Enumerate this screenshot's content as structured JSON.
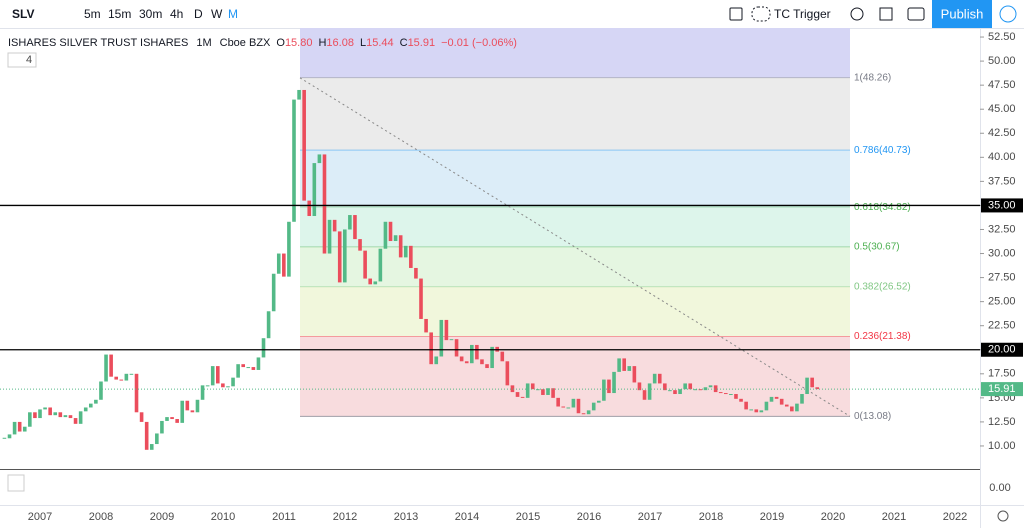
{
  "toolbar": {
    "symbol": "SLV",
    "intervals": [
      "5m",
      "15m",
      "30m",
      "4h",
      "D",
      "W",
      "M"
    ],
    "indicator": "TC Trigger",
    "publish": "Publish"
  },
  "legend": {
    "name": "ISHARES SILVER TRUST ISHARES",
    "interval": "1M",
    "exchange": "Cboe BZX",
    "ohlc": [
      [
        "O",
        "15.80"
      ],
      [
        "H",
        "16.08"
      ],
      [
        "L",
        "15.44"
      ],
      [
        "C",
        "15.91"
      ]
    ],
    "change": "−0.01 (−0.06%)",
    "indicators": "4"
  },
  "lower_pane": {
    "ytick": "0.00"
  },
  "chart_data": {
    "type": "candlestick",
    "up_color": "#53b987",
    "down_color": "#eb4d5c",
    "close": [
      10.8,
      11.2,
      12.5,
      11.5,
      12.0,
      13.5,
      12.9,
      13.8,
      14.0,
      13.2,
      13.5,
      13.0,
      13.2,
      12.9,
      12.3,
      13.6,
      14.0,
      14.4,
      14.8,
      16.7,
      19.5,
      17.2,
      16.9,
      16.8,
      17.5,
      17.5,
      13.5,
      12.5,
      9.6,
      10.2,
      11.3,
      12.6,
      13.0,
      12.8,
      12.4,
      14.7,
      13.7,
      13.5,
      14.8,
      16.3,
      16.3,
      18.3,
      16.5,
      16.1,
      16.2,
      17.1,
      18.5,
      18.2,
      18.2,
      17.9,
      19.2,
      21.2,
      24.0,
      27.9,
      30.0,
      27.6,
      33.3,
      46.0,
      47.0,
      35.5,
      33.9,
      39.4,
      40.3,
      30.0,
      33.5,
      32.3,
      27.0,
      32.5,
      34.0,
      31.5,
      30.3,
      27.4,
      26.8,
      27.1,
      30.5,
      33.3,
      31.3,
      31.9,
      29.6,
      30.8,
      28.5,
      27.4,
      23.2,
      21.8,
      18.5,
      19.3,
      23.1,
      21.0,
      21.1,
      19.3,
      18.8,
      18.6,
      20.5,
      19.0,
      18.5,
      18.1,
      20.3,
      19.8,
      18.8,
      16.3,
      15.6,
      15.1,
      15.0,
      16.5,
      15.9,
      15.9,
      15.3,
      16.0,
      15.0,
      14.1,
      14.0,
      14.0,
      14.9,
      13.4,
      13.3,
      13.7,
      14.5,
      14.7,
      16.9,
      15.5,
      17.7,
      19.1,
      17.8,
      18.3,
      16.6,
      15.8,
      14.8,
      16.5,
      17.5,
      16.5,
      15.8,
      15.8,
      15.4,
      15.9,
      16.5,
      15.9,
      15.9,
      15.8,
      16.1,
      16.3,
      15.6,
      15.5,
      15.4,
      15.4,
      14.9,
      14.6,
      13.8,
      13.8,
      13.5,
      13.7,
      14.6,
      15.1,
      14.9,
      14.3,
      14.1,
      13.6,
      14.4,
      15.4,
      17.1,
      16.1,
      15.91
    ],
    "ylim": [
      7.71,
      53.44
    ],
    "yticks": [
      {
        "value": 10,
        "label": "10.00"
      },
      {
        "value": 12.5,
        "label": "12.50"
      },
      {
        "value": 15,
        "label": "15.00"
      },
      {
        "value": 17.5,
        "label": "17.50"
      },
      {
        "value": 20,
        "label": "20.00"
      },
      {
        "value": 22.5,
        "label": "22.50"
      },
      {
        "value": 25,
        "label": "25.00"
      },
      {
        "value": 27.5,
        "label": "27.50"
      },
      {
        "value": 30,
        "label": "30.00"
      },
      {
        "value": 32.5,
        "label": "32.50"
      },
      {
        "value": 35,
        "label": "35.00"
      },
      {
        "value": 37.5,
        "label": "37.50"
      },
      {
        "value": 40,
        "label": "40.00"
      },
      {
        "value": 42.5,
        "label": "42.50"
      },
      {
        "value": 45,
        "label": "45.00"
      },
      {
        "value": 47.5,
        "label": "47.50"
      },
      {
        "value": 50,
        "label": "50.00"
      },
      {
        "value": 52.5,
        "label": "52.50"
      }
    ],
    "xticks": [
      "2007",
      "2008",
      "2009",
      "2010",
      "2011",
      "2012",
      "2013",
      "2014",
      "2015",
      "2016",
      "2017",
      "2018",
      "2019",
      "2020",
      "2021",
      "2022"
    ],
    "hlines": [
      {
        "value": 35,
        "label": "35.00"
      },
      {
        "value": 20,
        "label": "20.00"
      }
    ],
    "last_price": {
      "value": 15.91,
      "label": "15.91"
    },
    "fib_levels": [
      {
        "value": 48.26,
        "label": "1(48.26)",
        "color": "#787b86",
        "fill": "#e6e6e6"
      },
      {
        "value": 40.73,
        "label": "0.786(40.73)",
        "color": "#2196f3",
        "fill": "#d3e8f6"
      },
      {
        "value": 34.82,
        "label": "0.618(34.82)",
        "color": "#4caf50",
        "fill": "#d4f2e6"
      },
      {
        "value": 30.67,
        "label": "0.5(30.67)",
        "color": "#4caf50",
        "fill": "#dff4d9"
      },
      {
        "value": 26.52,
        "label": "0.382(26.52)",
        "color": "#81c784",
        "fill": "#eef5d3"
      },
      {
        "value": 21.38,
        "label": "0.236(21.38)",
        "color": "#f23645",
        "fill": "#f6d3d6"
      },
      {
        "value": 13.08,
        "label": "0(13.08)",
        "color": "#787b86",
        "fill": "#f6d3d6"
      }
    ]
  }
}
